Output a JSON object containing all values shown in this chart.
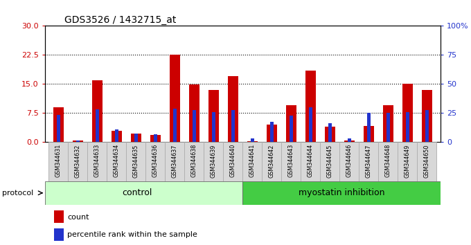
{
  "title": "GDS3526 / 1432715_at",
  "samples": [
    "GSM344631",
    "GSM344632",
    "GSM344633",
    "GSM344634",
    "GSM344635",
    "GSM344636",
    "GSM344637",
    "GSM344638",
    "GSM344639",
    "GSM344640",
    "GSM344641",
    "GSM344642",
    "GSM344643",
    "GSM344644",
    "GSM344645",
    "GSM344646",
    "GSM344647",
    "GSM344648",
    "GSM344649",
    "GSM344650"
  ],
  "count_vals": [
    9.0,
    0.5,
    16.0,
    3.0,
    2.2,
    1.8,
    22.5,
    14.8,
    13.5,
    17.0,
    0.3,
    4.5,
    9.5,
    18.5,
    4.0,
    0.5,
    4.2,
    9.5,
    15.0,
    13.5
  ],
  "pct_vals_scaled": [
    7.0,
    0.5,
    8.5,
    3.2,
    2.2,
    2.0,
    8.7,
    8.2,
    7.8,
    8.2,
    0.9,
    5.2,
    6.8,
    9.0,
    4.8,
    0.9,
    7.5,
    7.5,
    7.8,
    8.2
  ],
  "ylim_left": [
    0,
    30
  ],
  "ylim_right": [
    0,
    100
  ],
  "yticks_left": [
    0,
    7.5,
    15.0,
    22.5,
    30
  ],
  "yticks_right": [
    0,
    25,
    50,
    75,
    100
  ],
  "bar_color_red": "#cc0000",
  "bar_color_blue": "#2233cc",
  "control_color": "#ccffcc",
  "treatment_color": "#44cc44",
  "n_control": 10,
  "control_label": "control",
  "treatment_label": "myostatin inhibition",
  "protocol_label": "protocol",
  "legend_labels": [
    "count",
    "percentile rank within the sample"
  ]
}
